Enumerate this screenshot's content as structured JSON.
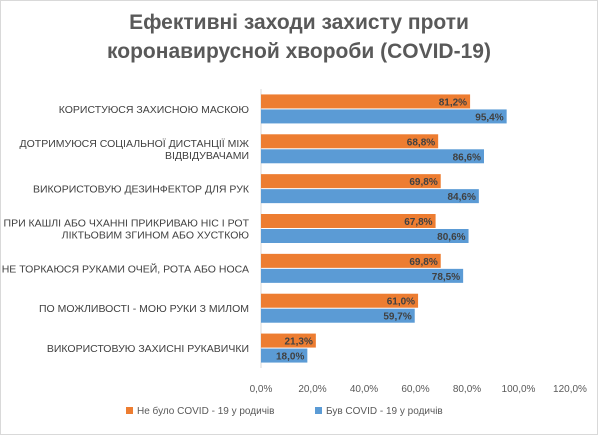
{
  "chart_data": {
    "type": "bar",
    "orientation": "horizontal",
    "title_lines": [
      "Ефективні заходи захисту проти",
      "коронавирусной хвороби (COVID-19)"
    ],
    "categories": [
      [
        "КОРИСТУЮСЯ ЗАХИСНОЮ МАСКОЮ"
      ],
      [
        "ДОТРИМУЮСЯ СОЦІАЛЬНОЇ ДИСТАНЦІЇ МІЖ",
        "ВІДВІДУВАЧАМИ"
      ],
      [
        "ВИКОРИСТОВУЮ ДЕЗИНФЕКТОР ДЛЯ РУК"
      ],
      [
        "ПРИ КАШЛІ АБО ЧХАННІ ПРИКРИВАЮ НІС І РОТ",
        "ЛІКТЬОВИМ ЗГИНОМ АБО ХУСТКОЮ"
      ],
      [
        "НЕ ТОРКАЮСЯ  РУКАМИ ОЧЕЙ, РОТА АБО НОСА"
      ],
      [
        "ПО МОЖЛИВОСТІ - МОЮ РУКИ З МИЛОМ"
      ],
      [
        "ВИКОРИСТОВУЮ ЗАХИСНІ РУКАВИЧКИ"
      ]
    ],
    "series": [
      {
        "name": "Не було COVID - 19 у родичів",
        "color": "#ed7d31",
        "values": [
          81.2,
          68.8,
          69.8,
          67.8,
          69.8,
          61.0,
          21.3
        ],
        "labels": [
          "81,2%",
          "68,8%",
          "69,8%",
          "67,8%",
          "69,8%",
          "61,0%",
          "21,3%"
        ]
      },
      {
        "name": "Був COVID - 19 у родичів",
        "color": "#5b9bd5",
        "values": [
          95.4,
          86.6,
          84.6,
          80.6,
          78.5,
          59.7,
          18.0
        ],
        "labels": [
          "95,4%",
          "86,6%",
          "84,6%",
          "80,6%",
          "78,5%",
          "59,7%",
          "18,0%"
        ]
      }
    ],
    "x_ticks": [
      0,
      20,
      40,
      60,
      80,
      100,
      120
    ],
    "x_tick_labels": [
      "0,0%",
      "20,0%",
      "40,0%",
      "60,0%",
      "80,0%",
      "100,0%",
      "120,0%"
    ],
    "xlim": [
      0,
      120
    ],
    "grid": false,
    "legend_position": "bottom"
  }
}
